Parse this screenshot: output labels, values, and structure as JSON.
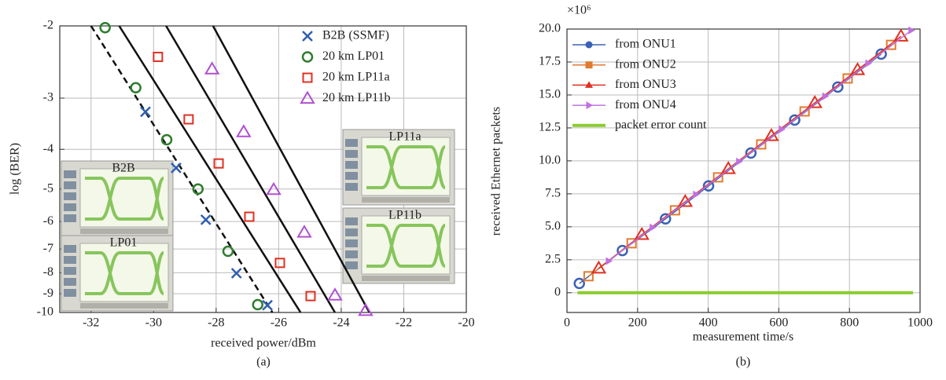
{
  "chart_data": [
    {
      "type": "scatter",
      "xlabel": "received power/dBm",
      "ylabel": "log (BER)",
      "caption": "(a)",
      "xlim": [
        -33,
        -20
      ],
      "xticks": [
        -32,
        -30,
        -28,
        -26,
        -24,
        -22,
        -20
      ],
      "ylim": [
        -10,
        -2
      ],
      "yticks": [
        -2,
        -3,
        -4,
        -5,
        -6,
        -7,
        -8,
        -9,
        -10
      ],
      "yscale": "log-negative",
      "grid": true,
      "series": [
        {
          "name": "B2B (SSMF)",
          "color": "#2f5fb0",
          "marker": "x",
          "x": [
            -30.26,
            -29.28,
            -28.33,
            -27.35,
            -26.36
          ],
          "values": [
            -3.24,
            -4.44,
            -5.94,
            -8.02,
            -9.6
          ]
        },
        {
          "name": "20 km LP01",
          "color": "#2e7d2e",
          "marker": "circle",
          "x": [
            -31.55,
            -30.57,
            -29.58,
            -28.58,
            -27.62,
            -26.67
          ],
          "values": [
            -2.02,
            -2.83,
            -3.79,
            -5.0,
            -7.09,
            -9.57
          ]
        },
        {
          "name": "20 km LP11a",
          "color": "#e03020",
          "marker": "square",
          "x": [
            -29.86,
            -28.88,
            -27.92,
            -26.94,
            -25.96,
            -24.98
          ],
          "values": [
            -2.38,
            -3.38,
            -4.33,
            -5.84,
            -7.57,
            -9.12
          ]
        },
        {
          "name": "20 km LP11b",
          "color": "#b050d0",
          "marker": "triangle-up",
          "x": [
            -28.13,
            -27.12,
            -26.16,
            -25.18,
            -24.2,
            -23.22
          ],
          "values": [
            -2.55,
            -3.63,
            -5.02,
            -6.38,
            -9.08,
            -9.9
          ]
        }
      ],
      "fit_lines": [
        {
          "style": "dashed",
          "x": [
            -32,
            -26.2
          ],
          "values": [
            -2,
            -10
          ]
        },
        {
          "style": "solid",
          "x": [
            -31.1,
            -25.3
          ],
          "values": [
            -2,
            -10
          ]
        },
        {
          "style": "solid",
          "x": [
            -29.6,
            -24.2
          ],
          "values": [
            -2,
            -10
          ]
        },
        {
          "style": "solid",
          "x": [
            -28.1,
            -23.1
          ],
          "values": [
            -2,
            -10
          ]
        }
      ],
      "legend": "upper right",
      "insets": [
        "B2B",
        "LP01",
        "LP11a",
        "LP11b"
      ]
    },
    {
      "type": "line",
      "xlabel": "measurement time/s",
      "ylabel": "received Ethernet packets",
      "caption": "(b)",
      "y_multiplier": "×10⁶",
      "xlim": [
        0,
        1000
      ],
      "xticks": [
        0,
        200,
        400,
        600,
        800,
        1000
      ],
      "ylim": [
        -1.5,
        20
      ],
      "yticks": [
        0,
        2.5,
        {
          "value": 5,
          "label": "5.0"
        },
        7.5,
        {
          "value": 10,
          "label": "10.0"
        },
        12.5,
        {
          "value": 15,
          "label": "15.0"
        },
        17.5,
        {
          "value": 20,
          "label": "20.0"
        }
      ],
      "grid": true,
      "series": [
        {
          "name": "from ONU1",
          "color": "#3a62b4",
          "marker": "circle",
          "x": [
            35,
            157,
            279,
            401,
            521,
            645,
            767,
            890
          ],
          "values": [
            0.7,
            3.2,
            5.6,
            8.1,
            10.6,
            13.1,
            15.6,
            18.1
          ]
        },
        {
          "name": "from ONU2",
          "color": "#e07a30",
          "marker": "square",
          "x": [
            61,
            183,
            306,
            428,
            550,
            673,
            795,
            918
          ],
          "values": [
            1.25,
            3.75,
            6.25,
            8.75,
            11.25,
            13.75,
            16.25,
            18.8
          ]
        },
        {
          "name": "from ONU3",
          "color": "#e03020",
          "marker": "triangle-up",
          "x": [
            90,
            212,
            335,
            457,
            579,
            702,
            823,
            946
          ],
          "values": [
            1.85,
            4.4,
            6.9,
            9.4,
            11.9,
            14.4,
            16.9,
            19.45
          ]
        },
        {
          "name": "from ONU4",
          "color": "#c070e0",
          "marker": "triangle-right",
          "x": [
            118,
            242,
            365,
            487,
            608,
            731,
            853,
            975
          ],
          "values": [
            2.4,
            4.95,
            7.45,
            9.95,
            12.4,
            14.9,
            17.4,
            19.9
          ]
        },
        {
          "name": "packet error count",
          "color": "#8ccc30",
          "marker": "none",
          "width": 4,
          "x": [
            30,
            980
          ],
          "values": [
            0,
            0
          ]
        }
      ],
      "legend": "upper left"
    }
  ]
}
